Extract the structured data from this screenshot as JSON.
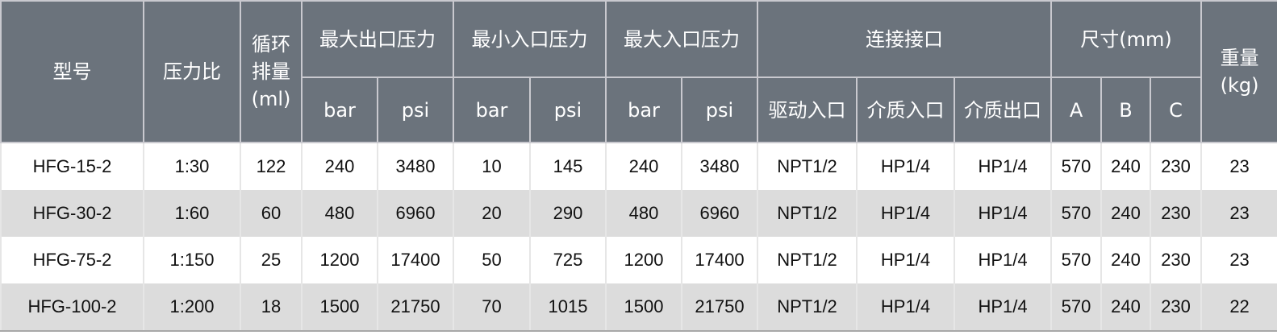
{
  "header": {
    "model": "型号",
    "ratio": "压力比",
    "displacement": [
      "循环",
      "排量",
      "(ml)"
    ],
    "max_outlet": "最大出口压力",
    "min_inlet": "最小入口压力",
    "max_inlet": "最大入口压力",
    "connections": "连接接口",
    "dimensions": "尺寸(mm)",
    "weight": [
      "重量",
      "(kg)"
    ],
    "units": [
      "bar",
      "psi",
      "bar",
      "psi",
      "bar",
      "psi"
    ],
    "connection_subs": [
      "驱动入口",
      "介质入口",
      "介质出口"
    ],
    "dimension_subs": [
      "A",
      "B",
      "C"
    ]
  },
  "colors": {
    "header_bg": "#6b737c",
    "row_alt": "#dcdcdc"
  },
  "rows": [
    [
      "HFG-15-2",
      "1:30",
      "122",
      "240",
      "3480",
      "10",
      "145",
      "240",
      "3480",
      "NPT1/2",
      "HP1/4",
      "HP1/4",
      "570",
      "240",
      "230",
      "23"
    ],
    [
      "HFG-30-2",
      "1:60",
      "60",
      "480",
      "6960",
      "20",
      "290",
      "480",
      "6960",
      "NPT1/2",
      "HP1/4",
      "HP1/4",
      "570",
      "240",
      "230",
      "23"
    ],
    [
      "HFG-75-2",
      "1:150",
      "25",
      "1200",
      "17400",
      "50",
      "725",
      "1200",
      "17400",
      "NPT1/2",
      "HP1/4",
      "HP1/4",
      "570",
      "240",
      "230",
      "23"
    ],
    [
      "HFG-100-2",
      "1:200",
      "18",
      "1500",
      "21750",
      "70",
      "1015",
      "1500",
      "21750",
      "NPT1/2",
      "HP1/4",
      "HP1/4",
      "570",
      "240",
      "230",
      "22"
    ]
  ]
}
